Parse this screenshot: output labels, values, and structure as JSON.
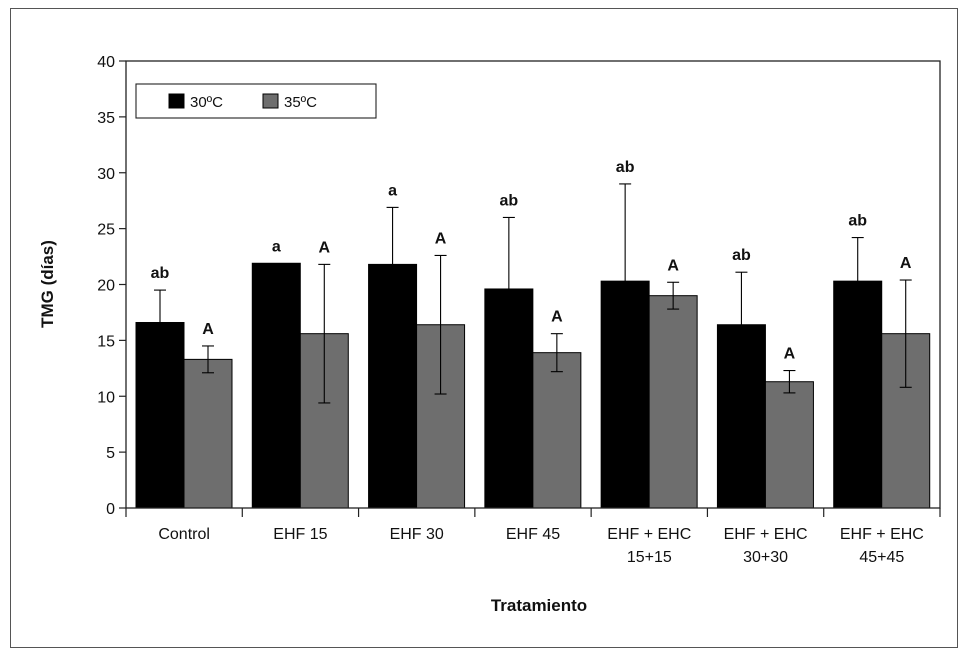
{
  "chart_data": {
    "type": "bar",
    "xlabel": "Tratamiento",
    "ylabel": "TMG (días)",
    "ylim": [
      0,
      40
    ],
    "yticks": [
      0,
      5,
      10,
      15,
      20,
      25,
      30,
      35,
      40
    ],
    "grid": false,
    "legend_position": "top-left",
    "categories": [
      [
        "Control"
      ],
      [
        "EHF 15"
      ],
      [
        "EHF 30"
      ],
      [
        "EHF 45"
      ],
      [
        "EHF + EHC",
        "15+15"
      ],
      [
        "EHF + EHC",
        "30+30"
      ],
      [
        "EHF + EHC",
        "45+45"
      ]
    ],
    "series": [
      {
        "name": "30ºC",
        "color": "#000000",
        "values": [
          16.6,
          21.9,
          21.8,
          19.6,
          20.3,
          16.4,
          20.3
        ],
        "error": [
          2.9,
          0,
          5.1,
          6.4,
          8.7,
          4.7,
          3.9
        ],
        "labels": [
          "ab",
          "a",
          "a",
          "ab",
          "ab",
          "ab",
          "ab"
        ]
      },
      {
        "name": "35ºC",
        "color": "#6e6e6e",
        "values": [
          13.3,
          15.6,
          16.4,
          13.9,
          19.0,
          11.3,
          15.6
        ],
        "error": [
          1.2,
          6.2,
          6.2,
          1.7,
          1.2,
          1.0,
          4.8
        ],
        "labels": [
          "A",
          "A",
          "A",
          "A",
          "A",
          "A",
          "A"
        ]
      }
    ]
  }
}
